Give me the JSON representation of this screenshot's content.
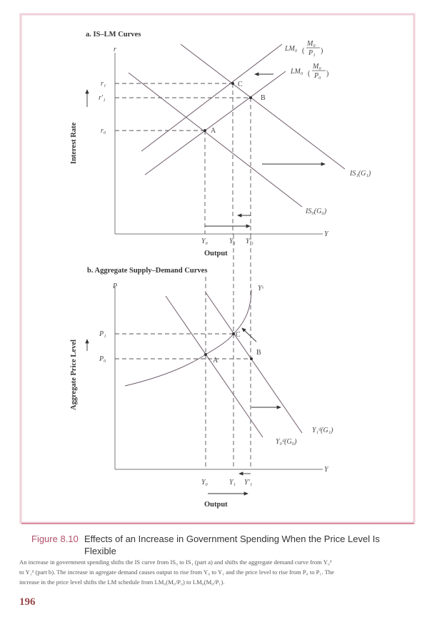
{
  "figure": {
    "number": "Figure 8.10",
    "title_line1": "Effects of an Increase in Government Spending When the Price Level Is",
    "title_line2": "Flexible",
    "caption_lines": [
      "An increase in government spending shifts the IS curve from IS₀ to IS₁ (part a) and shifts the aggregate demand curve from Y₀ᵈ",
      "to Y₁ᵈ (part b). The increase in agregate demand causes output to rise from Y₀ to Y₁ and the price level to rise from P₀ to P₁. The",
      "increase in the price level shifts the LM schedule from LM₀(M₀/P₀) to LM₀(M₀/P₁)."
    ],
    "page_number": "196",
    "accent_color": "#b0506a",
    "frame_color": "#e8b8c4"
  },
  "panel_a": {
    "title": "a. IS–LM Curves",
    "y_axis_symbol": "r",
    "x_axis_symbol": "Y",
    "y_axis_label": "Interest Rate",
    "x_axis_label": "Output",
    "y_ticks": [
      "r₁",
      "r′₁",
      "r₀"
    ],
    "x_ticks": [
      "Y₀",
      "Y₁",
      "Y′₁"
    ],
    "curves": {
      "lm_p1": {
        "name": "LM₀",
        "num": "M₀",
        "den": "P₁"
      },
      "lm_p0": {
        "name": "LM₀",
        "num": "M₀",
        "den": "P₀"
      },
      "is1": "IS₁(G₁)",
      "is0": "IS₀(G₀)"
    },
    "points": [
      "A",
      "B",
      "C"
    ]
  },
  "panel_b": {
    "title": "b. Aggregate Supply–Demand Curves",
    "y_axis_symbol": "P",
    "x_axis_symbol": "Y",
    "y_axis_label": "Aggregate Price Level",
    "x_axis_label": "Output",
    "y_ticks": [
      "P₁",
      "P₀"
    ],
    "x_ticks": [
      "Y₀",
      "Y₁",
      "Y′₁"
    ],
    "curves": {
      "supply": "Yˢ",
      "demand1": "Y₁ᵈ(G₁)",
      "demand0": "Y₀ᵈ(G₀)"
    },
    "points": [
      "A",
      "B",
      "C"
    ]
  }
}
